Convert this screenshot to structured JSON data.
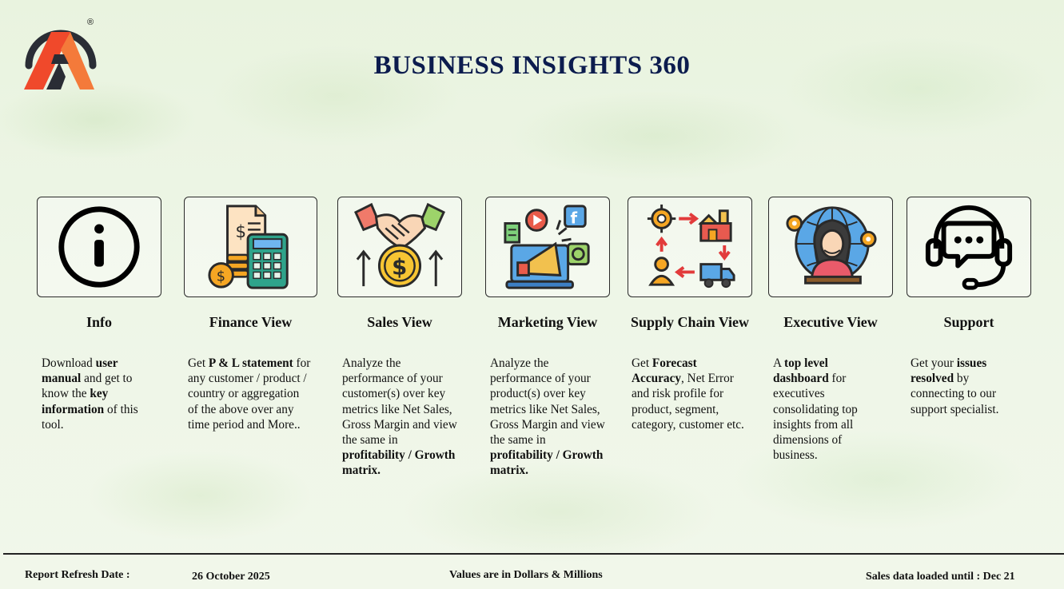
{
  "header": {
    "title": "BUSINESS INSIGHTS 360",
    "logo_mark": "®"
  },
  "colors": {
    "title": "#0c1c4e",
    "logo_orange": "#f0492b",
    "logo_ring": "#2a2d35"
  },
  "cards": [
    {
      "key": "info",
      "label": "Info",
      "icon": "info-icon",
      "desc": [
        {
          "t": "Download "
        },
        {
          "t": "user manual",
          "b": true
        },
        {
          "t": " and get to know the "
        },
        {
          "t": "key information",
          "b": true
        },
        {
          "t": " of this tool."
        }
      ]
    },
    {
      "key": "finance",
      "label": "Finance View",
      "icon": "calculator-icon",
      "desc": [
        {
          "t": "Get  "
        },
        {
          "t": "P & L statement",
          "b": true
        },
        {
          "t": " for any customer / product / country or aggregation of the above over any time period and More.."
        }
      ]
    },
    {
      "key": "sales",
      "label": "Sales View",
      "icon": "handshake-icon",
      "desc": [
        {
          "t": "Analyze the performance of your customer(s) over key metrics like Net Sales, Gross Margin and view the same in "
        },
        {
          "t": "profitability / Growth matrix.",
          "b": true
        }
      ]
    },
    {
      "key": "marketing",
      "label": "Marketing View",
      "icon": "megaphone-icon",
      "desc": [
        {
          "t": "Analyze the performance of your product(s) over key metrics like Net Sales, Gross Margin and view the same in "
        },
        {
          "t": "profitability / Growth matrix.",
          "b": true
        }
      ]
    },
    {
      "key": "supply",
      "label": "Supply Chain View",
      "icon": "supply-chain-icon",
      "desc": [
        {
          "t": "Get "
        },
        {
          "t": "Forecast Accuracy",
          "b": true
        },
        {
          "t": ", Net Error and risk profile for product, segment, category, customer etc."
        }
      ]
    },
    {
      "key": "executive",
      "label": "Executive View",
      "icon": "executive-icon",
      "desc": [
        {
          "t": "A "
        },
        {
          "t": "top level dashboard",
          "b": true
        },
        {
          "t": " for executives consolidating top insights from all dimensions of business."
        }
      ]
    },
    {
      "key": "support",
      "label": "Support",
      "icon": "headset-icon",
      "desc": [
        {
          "t": "Get your "
        },
        {
          "t": "issues resolved",
          "b": true
        },
        {
          "t": " by connecting to our support specialist."
        }
      ]
    }
  ],
  "footer": {
    "refresh_label": "Report Refresh Date :",
    "refresh_date": "26 October 2025",
    "units_note": "Values are in Dollars & Millions",
    "loaded_until": "Sales data loaded until : Dec 21"
  }
}
